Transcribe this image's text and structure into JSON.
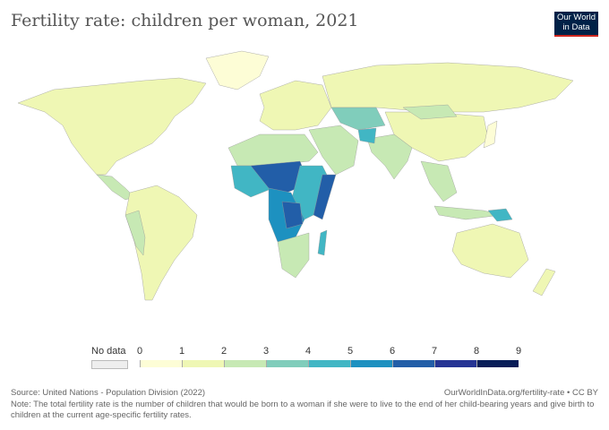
{
  "title": "Fertility rate: children per woman, 2021",
  "logo": {
    "line1": "Our World",
    "line2": "in Data"
  },
  "legend": {
    "no_data_label": "No data",
    "ticks": [
      "0",
      "1",
      "2",
      "3",
      "4",
      "5",
      "6",
      "7",
      "8",
      "9"
    ],
    "bins": [
      {
        "range": [
          0,
          1
        ],
        "color": "#fdfdd6"
      },
      {
        "range": [
          1,
          2
        ],
        "color": "#eff7b4"
      },
      {
        "range": [
          2,
          3
        ],
        "color": "#c7e9b4"
      },
      {
        "range": [
          3,
          4
        ],
        "color": "#80cdbb"
      },
      {
        "range": [
          4,
          5
        ],
        "color": "#41b6c4"
      },
      {
        "range": [
          5,
          6
        ],
        "color": "#1d91c0"
      },
      {
        "range": [
          6,
          7
        ],
        "color": "#225ea8"
      },
      {
        "range": [
          7,
          8
        ],
        "color": "#253494"
      },
      {
        "range": [
          8,
          9
        ],
        "color": "#081d58"
      }
    ]
  },
  "footer": {
    "source": "Source: United Nations - Population Division (2022)",
    "url": "OurWorldInData.org/fertility-rate • CC BY",
    "note": "Note: The total fertility rate is the number of children that would be born to a woman if she were to live to the end of her child-bearing years and give birth to children at the current age-specific fertility rates."
  }
}
